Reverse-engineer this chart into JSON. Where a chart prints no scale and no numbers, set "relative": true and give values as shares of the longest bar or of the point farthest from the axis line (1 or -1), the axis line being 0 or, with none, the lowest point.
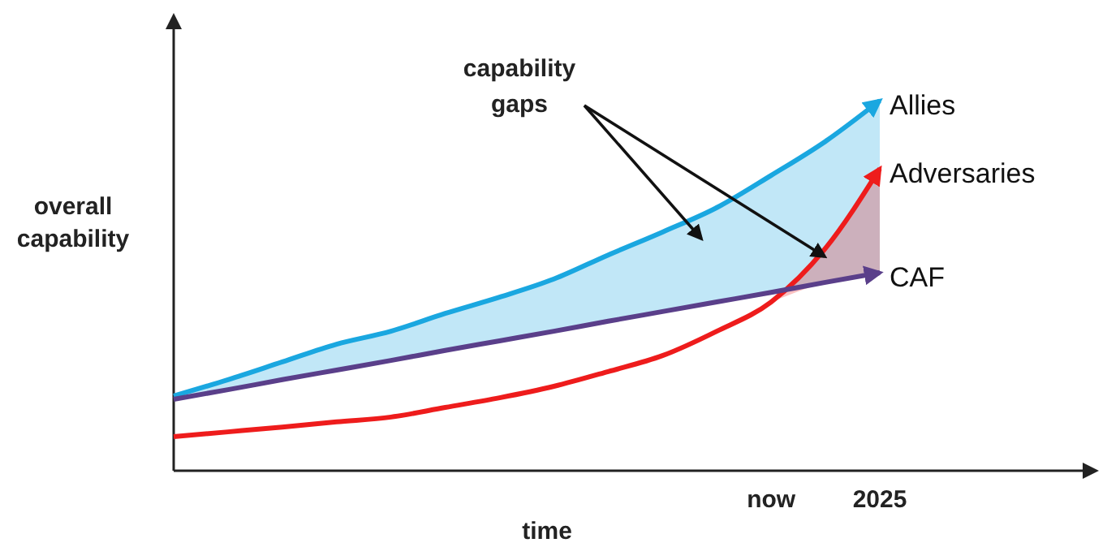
{
  "chart_data": {
    "type": "line",
    "relative": true,
    "xlabel": "time",
    "ylabel": "overall capability",
    "annotations": [
      "capability gaps"
    ],
    "categories": [
      null,
      null,
      null,
      null,
      null,
      null,
      null,
      null,
      null,
      null,
      null,
      "now",
      null,
      "2025"
    ],
    "tick_labels": "x",
    "marker": "none",
    "line_style": "solid",
    "series": [
      {
        "name": "Allies",
        "color": "#1aa7e0",
        "values": [
          0.202,
          0.246,
          0.294,
          0.342,
          0.377,
          0.425,
          0.469,
          0.518,
          0.583,
          0.645,
          0.711,
          0.798,
          0.89,
          1
        ],
        "lower": [
          0.193,
          0.219,
          0.246,
          0.272,
          0.298,
          0.325,
          0.351,
          0.377,
          0.404,
          0.43,
          0.456,
          0.482,
          0.509,
          0.535
        ],
        "upper": [
          0.202,
          0.246,
          0.294,
          0.342,
          0.377,
          0.425,
          0.469,
          0.518,
          0.583,
          0.645,
          0.711,
          0.798,
          0.89,
          1
        ]
      },
      {
        "name": "Adversaries",
        "color": "#ee1c1c",
        "values": [
          0.092,
          0.105,
          0.118,
          0.132,
          0.145,
          0.171,
          0.197,
          0.228,
          0.268,
          0.311,
          0.377,
          0.456,
          0.601,
          0.816
        ],
        "lower": [
          null,
          null,
          null,
          null,
          null,
          null,
          null,
          null,
          null,
          null,
          null,
          0.456,
          0.509,
          0.535
        ],
        "upper": [
          null,
          null,
          null,
          null,
          null,
          null,
          null,
          null,
          null,
          null,
          null,
          0.456,
          0.601,
          0.816
        ]
      },
      {
        "name": "CAF",
        "color": "#5a3f8a",
        "values": [
          0.193,
          0.219,
          0.246,
          0.272,
          0.298,
          0.325,
          0.351,
          0.377,
          0.404,
          0.43,
          0.456,
          0.482,
          0.509,
          0.535
        ]
      }
    ]
  }
}
